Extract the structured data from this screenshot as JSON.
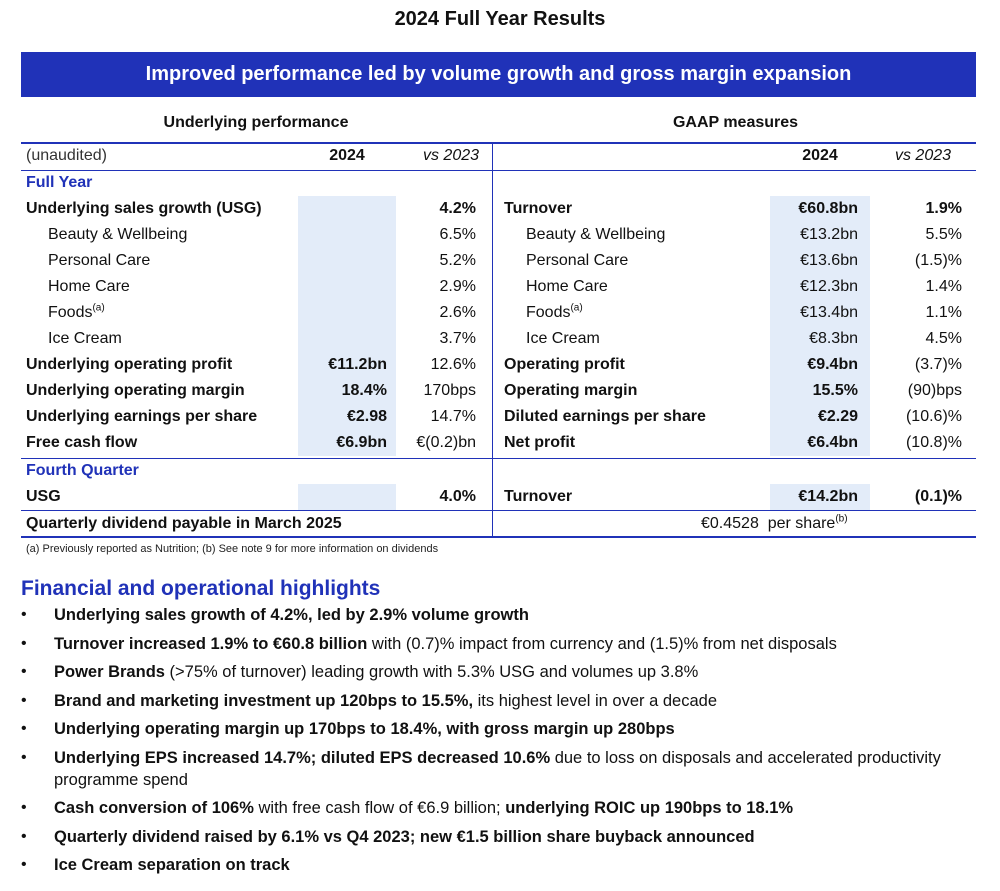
{
  "title": "2024 Full Year Results",
  "banner": "Improved performance led by volume growth and gross margin expansion",
  "table": {
    "left_header": "Underlying performance",
    "right_header": "GAAP measures",
    "col_labels": {
      "unaudited": "(unaudited)",
      "year": "2024",
      "vs": "vs 2023"
    },
    "section_full_year": "Full Year",
    "section_q4": "Fourth Quarter",
    "rows": [
      {
        "l_label": "Underlying sales growth (USG)",
        "l_bold": true,
        "l_2024": "",
        "l_vs": "4.2%",
        "l_vs_bold": true,
        "r_label": "Turnover",
        "r_bold": true,
        "r_2024": "€60.8bn",
        "r_vs": "1.9%",
        "r_vs_bold": true
      },
      {
        "l_label": "Beauty & Wellbeing",
        "l_indent": true,
        "l_2024": "",
        "l_vs": "6.5%",
        "r_label": "Beauty & Wellbeing",
        "r_indent": true,
        "r_2024": "€13.2bn",
        "r_vs": "5.5%"
      },
      {
        "l_label": "Personal Care",
        "l_indent": true,
        "l_2024": "",
        "l_vs": "5.2%",
        "r_label": "Personal Care",
        "r_indent": true,
        "r_2024": "€13.6bn",
        "r_vs": "(1.5)%"
      },
      {
        "l_label": "Home Care",
        "l_indent": true,
        "l_2024": "",
        "l_vs": "2.9%",
        "r_label": "Home Care",
        "r_indent": true,
        "r_2024": "€12.3bn",
        "r_vs": "1.4%"
      },
      {
        "l_label": "Foods",
        "l_sup": "(a)",
        "l_indent": true,
        "l_2024": "",
        "l_vs": "2.6%",
        "r_label": "Foods",
        "r_sup": "(a)",
        "r_indent": true,
        "r_2024": "€13.4bn",
        "r_vs": "1.1%"
      },
      {
        "l_label": "Ice Cream",
        "l_indent": true,
        "l_2024": "",
        "l_vs": "3.7%",
        "r_label": "Ice Cream",
        "r_indent": true,
        "r_2024": "€8.3bn",
        "r_vs": "4.5%"
      },
      {
        "l_label": "Underlying operating profit",
        "l_bold": true,
        "l_2024": "€11.2bn",
        "l_vs": "12.6%",
        "r_label": "Operating profit",
        "r_bold": true,
        "r_2024": "€9.4bn",
        "r_vs": "(3.7)%"
      },
      {
        "l_label": "Underlying operating margin",
        "l_bold": true,
        "l_2024": "18.4%",
        "l_vs": "170bps",
        "r_label": "Operating margin",
        "r_bold": true,
        "r_2024": "15.5%",
        "r_vs": "(90)bps"
      },
      {
        "l_label": "Underlying earnings per share",
        "l_bold": true,
        "l_2024": "€2.98",
        "l_vs": "14.7%",
        "r_label": "Diluted earnings per share",
        "r_bold": true,
        "r_2024": "€2.29",
        "r_vs": "(10.6)%"
      },
      {
        "l_label": "Free cash flow",
        "l_bold": true,
        "l_2024": "€6.9bn",
        "l_vs": "€(0.2)bn",
        "r_label": "Net profit",
        "r_bold": true,
        "r_2024": "€6.4bn",
        "r_vs": "(10.8)%"
      }
    ],
    "q4_row": {
      "l_label": "USG",
      "l_vs": "4.0%",
      "r_label": "Turnover",
      "r_2024": "€14.2bn",
      "r_vs": "(0.1)%"
    },
    "dividend": {
      "label": "Quarterly dividend payable in March 2025",
      "value": "€0.4528",
      "suffix": "per share",
      "sup": "(b)"
    }
  },
  "footnote": "(a) Previously reported as Nutrition; (b) See note 9 for more information on dividends",
  "highlights_title": "Financial and operational highlights",
  "highlights": [
    [
      {
        "t": "Underlying sales growth of 4.2%, led by 2.9% volume growth",
        "b": true
      }
    ],
    [
      {
        "t": "Turnover increased 1.9% to €60.8 billion",
        "b": true
      },
      {
        "t": " with (0.7)% impact from currency and (1.5)% from net disposals",
        "b": false
      }
    ],
    [
      {
        "t": "Power Brands",
        "b": true
      },
      {
        "t": " (>75% of turnover) leading growth with 5.3% USG and volumes up 3.8%",
        "b": false
      }
    ],
    [
      {
        "t": "Brand and marketing investment up 120bps to 15.5%,",
        "b": true
      },
      {
        "t": " its highest level in over a decade",
        "b": false
      }
    ],
    [
      {
        "t": "Underlying operating margin up 170bps to 18.4%, with gross margin up 280bps",
        "b": true
      }
    ],
    [
      {
        "t": "Underlying EPS increased 14.7%; diluted EPS decreased 10.6%",
        "b": true
      },
      {
        "t": " due to loss on disposals and accelerated productivity programme spend",
        "b": false
      }
    ],
    [
      {
        "t": "Cash conversion of 106%",
        "b": true
      },
      {
        "t": " with free cash flow of €6.9 billion; ",
        "b": false
      },
      {
        "t": "underlying ROIC up 190bps to 18.1%",
        "b": true
      }
    ],
    [
      {
        "t": "Quarterly dividend raised by 6.1% vs Q4 2023; new €1.5 billion share buyback announced",
        "b": true
      }
    ],
    [
      {
        "t": "Ice Cream separation on track",
        "b": true
      }
    ]
  ],
  "colors": {
    "accent": "#2032b8",
    "shade": "#e3ecf9"
  }
}
